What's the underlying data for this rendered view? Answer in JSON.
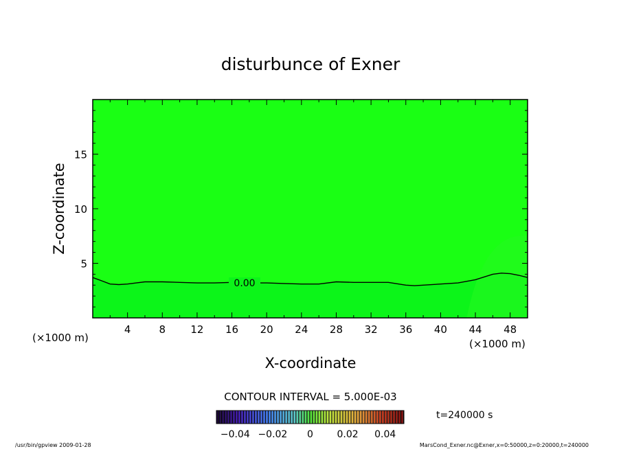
{
  "chart_data": {
    "type": "heatmap",
    "title": "disturbunce of Exner",
    "xlabel": "X-coordinate",
    "ylabel": "Z-coordinate",
    "x_unit_left": "(×1000 m)",
    "x_unit_right": "(×1000 m)",
    "xlim": [
      0,
      50
    ],
    "ylim": [
      0,
      20
    ],
    "x_ticks": [
      4,
      8,
      12,
      16,
      20,
      24,
      28,
      32,
      36,
      40,
      44,
      48
    ],
    "y_ticks": [
      5,
      10,
      15
    ],
    "contour_line": {
      "label": "0.00",
      "points": [
        [
          0,
          3.7
        ],
        [
          1,
          3.4
        ],
        [
          2,
          3.1
        ],
        [
          3,
          3.05
        ],
        [
          4,
          3.1
        ],
        [
          5,
          3.2
        ],
        [
          6,
          3.3
        ],
        [
          8,
          3.3
        ],
        [
          10,
          3.25
        ],
        [
          12,
          3.2
        ],
        [
          14,
          3.2
        ],
        [
          16,
          3.25
        ],
        [
          18,
          3.2
        ],
        [
          20,
          3.2
        ],
        [
          22,
          3.15
        ],
        [
          24,
          3.1
        ],
        [
          26,
          3.1
        ],
        [
          28,
          3.3
        ],
        [
          30,
          3.25
        ],
        [
          32,
          3.25
        ],
        [
          34,
          3.25
        ],
        [
          36,
          3.0
        ],
        [
          37,
          2.95
        ],
        [
          38,
          3.0
        ],
        [
          40,
          3.1
        ],
        [
          42,
          3.2
        ],
        [
          44,
          3.5
        ],
        [
          45,
          3.75
        ],
        [
          46,
          4.0
        ],
        [
          47,
          4.1
        ],
        [
          48,
          4.05
        ],
        [
          49,
          3.9
        ],
        [
          50,
          3.7
        ]
      ]
    },
    "contour_interval": "CONTOUR INTERVAL = 5.000E-03",
    "colorbar": {
      "range": [
        -0.05,
        0.05
      ],
      "tick_values": [
        -0.04,
        -0.02,
        0,
        0.02,
        0.04
      ],
      "tick_labels": [
        "−0.04",
        "−0.02",
        "0",
        "0.02",
        "0.04"
      ]
    },
    "time_label": "t=240000 s",
    "fill_colors": {
      "upper": "#1aff14",
      "lower": "#0cf519",
      "lower_right": "#27f821"
    }
  },
  "footer": {
    "left": "/usr/bin/gpview   2009-01-28",
    "right": "MarsCond_Exner.nc@Exner,x=0:50000,z=0:20000,t=240000"
  }
}
